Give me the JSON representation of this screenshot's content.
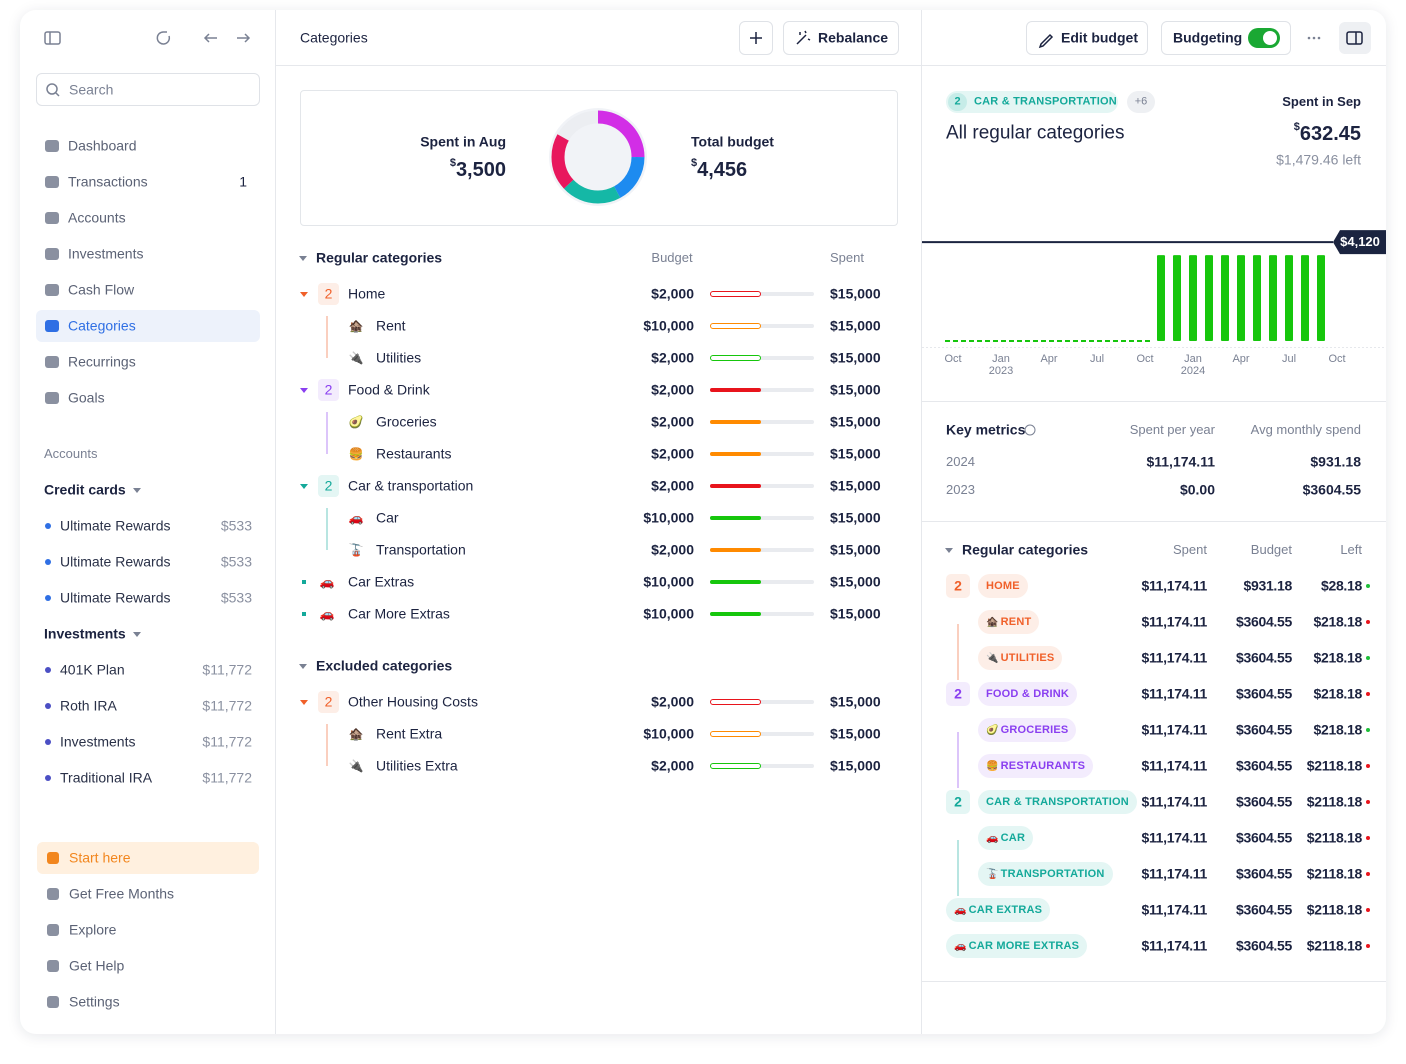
{
  "sidebar": {
    "search_placeholder": "Search",
    "nav": [
      {
        "label": "Dashboard"
      },
      {
        "label": "Transactions",
        "count": 1
      },
      {
        "label": "Accounts"
      },
      {
        "label": "Investments"
      },
      {
        "label": "Cash Flow"
      },
      {
        "label": "Categories",
        "active": true
      },
      {
        "label": "Recurrings"
      },
      {
        "label": "Goals"
      }
    ],
    "accounts": {
      "heading": "Accounts",
      "groups": [
        {
          "title": "Credit cards",
          "dot_color": "#2f6fe4",
          "items": [
            {
              "name": "Ultimate Rewards",
              "balance": "$533"
            },
            {
              "name": "Ultimate Rewards",
              "balance": "$533"
            },
            {
              "name": "Ultimate Rewards",
              "balance": "$533"
            }
          ]
        },
        {
          "title": "Investments",
          "dot_color": "#4b4fc4",
          "items": [
            {
              "name": "401K Plan",
              "balance": "$11,772"
            },
            {
              "name": "Roth IRA",
              "balance": "$11,772"
            },
            {
              "name": "Investments",
              "balance": "$11,772"
            },
            {
              "name": "Traditional IRA",
              "balance": "$11,772"
            }
          ]
        }
      ]
    },
    "footer": [
      {
        "label": "Start here",
        "highlight": true
      },
      {
        "label": "Get Free Months"
      },
      {
        "label": "Explore"
      },
      {
        "label": "Get Help"
      },
      {
        "label": "Settings"
      }
    ]
  },
  "categories": {
    "title": "Categories",
    "rebalance": "Rebalance",
    "summary": {
      "spent_label": "Spent in Aug",
      "spent": {
        "currency": "$",
        "amount": "3,500"
      },
      "budget_label": "Total budget",
      "budget": {
        "currency": "$",
        "amount": "4,456"
      }
    },
    "columns": {
      "budget": "Budget",
      "spent": "Spent"
    },
    "sections": [
      {
        "title": "Regular categories",
        "rows": [
          {
            "name": "Home",
            "count": 2,
            "color": "#f0602a",
            "background": "#fdeee7",
            "budget": "$2,000",
            "spent": "$15,000",
            "bar_color": "#e8141c",
            "bar_outline": true,
            "children": [
              {
                "icon": "🏚️",
                "name": "Rent",
                "budget": "$10,000",
                "spent": "$15,000",
                "bar_color": "#ff8a00",
                "bar_outline": true
              },
              {
                "icon": "🔌",
                "name": "Utilities",
                "budget": "$2,000",
                "spent": "$15,000",
                "bar_color": "#16c60c",
                "bar_outline": true
              }
            ]
          },
          {
            "name": "Food & Drink",
            "count": 2,
            "color": "#8a3ff0",
            "background": "#f3ecfd",
            "budget": "$2,000",
            "spent": "$15,000",
            "bar_color": "#e8141c",
            "children": [
              {
                "icon": "🥑",
                "name": "Groceries",
                "budget": "$2,000",
                "spent": "$15,000",
                "bar_color": "#ff8a00"
              },
              {
                "icon": "🍔",
                "name": "Restaurants",
                "budget": "$2,000",
                "spent": "$15,000",
                "bar_color": "#ff8a00"
              }
            ]
          },
          {
            "name": "Car & transportation",
            "count": 2,
            "color": "#14a99a",
            "background": "#e4f6f4",
            "budget": "$2,000",
            "spent": "$15,000",
            "bar_color": "#e8141c",
            "children": [
              {
                "icon": "🚗",
                "name": "Car",
                "budget": "$10,000",
                "spent": "$15,000",
                "bar_color": "#16c60c"
              },
              {
                "icon": "🚡",
                "name": "Transportation",
                "budget": "$2,000",
                "spent": "$15,000",
                "bar_color": "#ff8a00"
              }
            ]
          },
          {
            "icon": "🚗",
            "name": "Car Extras",
            "color": "#14a99a",
            "budget": "$10,000",
            "spent": "$15,000",
            "bar_color": "#16c60c"
          },
          {
            "icon": "🚗",
            "name": "Car More Extras",
            "color": "#14a99a",
            "budget": "$10,000",
            "spent": "$15,000",
            "bar_color": "#16c60c"
          }
        ]
      },
      {
        "title": "Excluded categories",
        "rows": [
          {
            "name": "Other Housing Costs",
            "count": 2,
            "color": "#f0602a",
            "background": "#fdeee7",
            "budget": "$2,000",
            "spent": "$15,000",
            "bar_color": "#e8141c",
            "bar_outline": true,
            "children": [
              {
                "icon": "🏚️",
                "name": "Rent Extra",
                "budget": "$10,000",
                "spent": "$15,000",
                "bar_color": "#ff8a00",
                "bar_outline": true
              },
              {
                "icon": "🔌",
                "name": "Utilities Extra",
                "budget": "$2,000",
                "spent": "$15,000",
                "bar_color": "#16c60c",
                "bar_outline": true
              }
            ]
          }
        ]
      }
    ]
  },
  "detail": {
    "edit_budget": "Edit budget",
    "budgeting": "Budgeting",
    "budgeting_on": true,
    "filter": {
      "count": 2,
      "tag": "CAR & TRANSPORTATION",
      "more": "+6"
    },
    "title": "All regular categories",
    "spent_label": "Spent in Sep",
    "spent": {
      "currency": "$",
      "amount": "632.45"
    },
    "left": "$1,479.46 left",
    "chart": {
      "type": "bar",
      "color": "#16c60c",
      "categories": [
        "Oct",
        null,
        null,
        "Jan 2023",
        null,
        null,
        "Apr",
        null,
        null,
        "Jul",
        null,
        null,
        "Oct",
        null,
        null,
        "Jan 2024",
        null,
        null,
        "Apr",
        null,
        null,
        "Jul",
        null,
        null,
        "Oct"
      ],
      "values": [
        0,
        0,
        0,
        0,
        0,
        0,
        0,
        0,
        0,
        0,
        0,
        0,
        0,
        3580,
        3580,
        3580,
        3580,
        3580,
        3580,
        3580,
        3580,
        3580,
        3580,
        3580,
        null
      ],
      "ylim": [
        0,
        4500
      ],
      "budget_line": 4120,
      "budget_label": "$4,120"
    },
    "key_metrics": {
      "title": "Key metrics",
      "columns": [
        "Spent per year",
        "Avg monthly spend"
      ],
      "rows": [
        [
          "2024",
          "$11,174.11",
          "$931.18"
        ],
        [
          "2023",
          "$0.00",
          "$3604.55"
        ]
      ]
    },
    "table": {
      "title": "Regular categories",
      "columns": [
        "Spent",
        "Budget",
        "Left"
      ],
      "rows": [
        {
          "name": "HOME",
          "count": 2,
          "color": "#f0602a",
          "background": "#fdeee7",
          "spent": "$11,174.11",
          "budget": "$931.18",
          "left": "$28.18",
          "status_color": "#1fbf3a",
          "children": [
            {
              "icon": "🏚️",
              "name": "RENT",
              "spent": "$11,174.11",
              "budget": "$3604.55",
              "left": "$218.18",
              "status_color": "#e8141c"
            },
            {
              "icon": "🔌",
              "name": "UTILITIES",
              "spent": "$11,174.11",
              "budget": "$3604.55",
              "left": "$218.18",
              "status_color": "#1fbf3a"
            }
          ]
        },
        {
          "name": "FOOD & DRINK",
          "count": 2,
          "color": "#8a3ff0",
          "background": "#f3ecfd",
          "spent": "$11,174.11",
          "budget": "$3604.55",
          "left": "$218.18",
          "status_color": "#e8141c",
          "children": [
            {
              "icon": "🥑",
              "name": "GROCERIES",
              "spent": "$11,174.11",
              "budget": "$3604.55",
              "left": "$218.18",
              "status_color": "#1fbf3a"
            },
            {
              "icon": "🍔",
              "name": "RESTAURANTS",
              "spent": "$11,174.11",
              "budget": "$3604.55",
              "left": "$2118.18",
              "status_color": "#e8141c"
            }
          ]
        },
        {
          "name": "CAR & TRANSPORTATION",
          "count": 2,
          "color": "#14a99a",
          "background": "#e4f6f4",
          "spent": "$11,174.11",
          "budget": "$3604.55",
          "left": "$2118.18",
          "status_color": "#e8141c",
          "children": [
            {
              "icon": "🚗",
              "name": "CAR",
              "spent": "$11,174.11",
              "budget": "$3604.55",
              "left": "$2118.18",
              "status_color": "#e8141c"
            },
            {
              "icon": "🚡",
              "name": "TRANSPORTATION",
              "spent": "$11,174.11",
              "budget": "$3604.55",
              "left": "$2118.18",
              "status_color": "#e8141c"
            }
          ]
        },
        {
          "icon": "🚗",
          "name": "CAR EXTRAS",
          "color": "#14a99a",
          "background": "#e4f6f4",
          "spent": "$11,174.11",
          "budget": "$3604.55",
          "left": "$2118.18",
          "status_color": "#e8141c"
        },
        {
          "icon": "🚗",
          "name": "CAR MORE EXTRAS",
          "color": "#14a99a",
          "background": "#e4f6f4",
          "spent": "$11,174.11",
          "budget": "$3604.55",
          "left": "$2118.18",
          "status_color": "#e8141c"
        }
      ]
    }
  }
}
